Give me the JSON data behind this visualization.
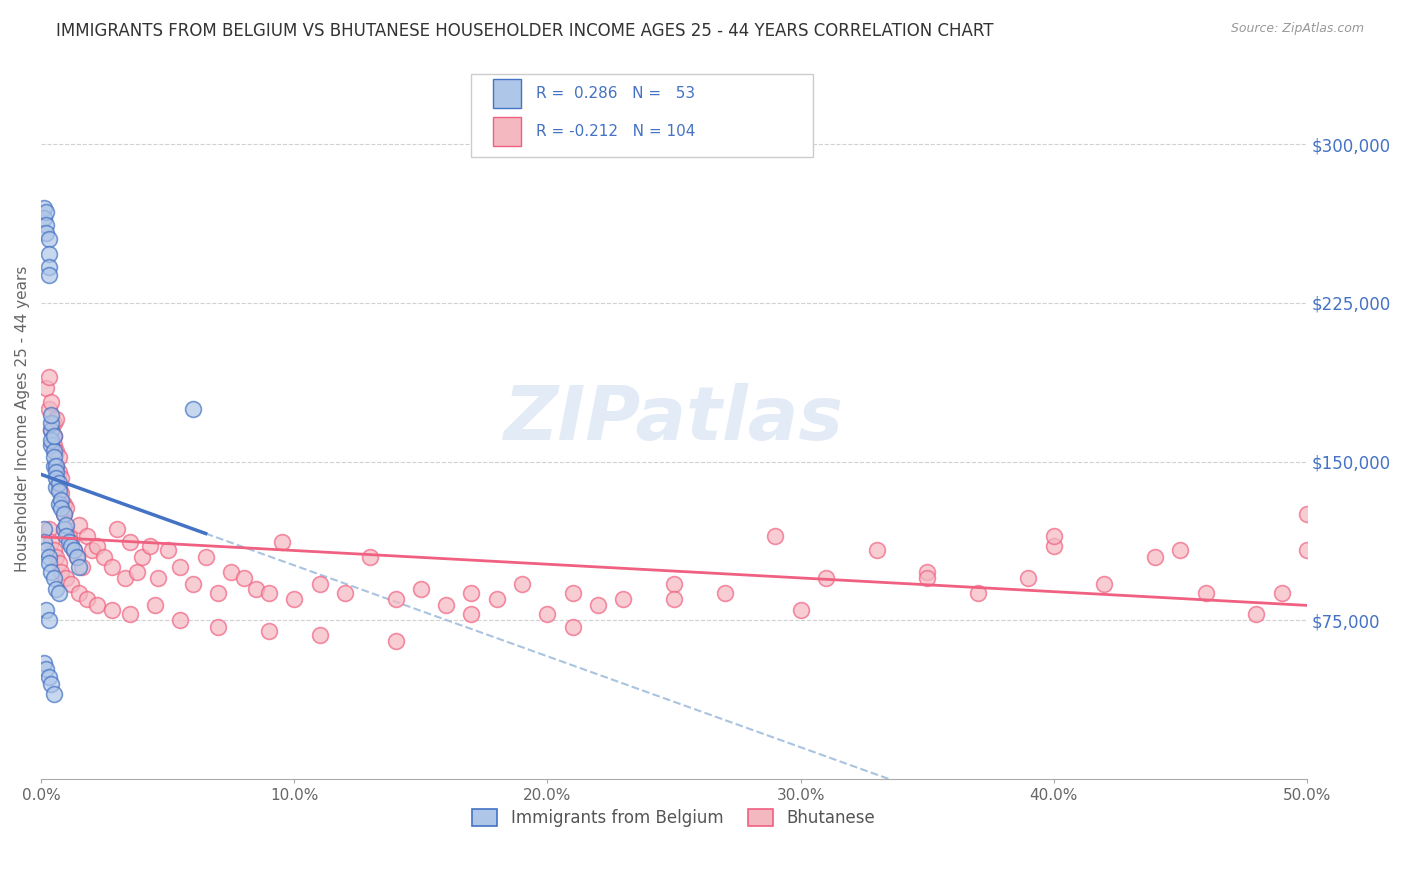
{
  "title": "IMMIGRANTS FROM BELGIUM VS BHUTANESE HOUSEHOLDER INCOME AGES 25 - 44 YEARS CORRELATION CHART",
  "source": "Source: ZipAtlas.com",
  "ylabel": "Householder Income Ages 25 - 44 years",
  "xlim": [
    0.0,
    0.5
  ],
  "ylim": [
    0,
    340000
  ],
  "xticklabels": [
    "0.0%",
    "10.0%",
    "20.0%",
    "30.0%",
    "40.0%",
    "50.0%"
  ],
  "xtick_vals": [
    0.0,
    0.1,
    0.2,
    0.3,
    0.4,
    0.5
  ],
  "yticks_right": [
    75000,
    150000,
    225000,
    300000
  ],
  "ytick_right_labels": [
    "$75,000",
    "$150,000",
    "$225,000",
    "$300,000"
  ],
  "legend_entries": [
    {
      "label": "Immigrants from Belgium",
      "color": "#aec6e8"
    },
    {
      "label": "Bhutanese",
      "color": "#f4b8c1"
    }
  ],
  "r_belgium": 0.286,
  "n_belgium": 53,
  "r_bhutanese": -0.212,
  "n_bhutanese": 104,
  "legend_r_color": "#4472c4",
  "watermark": "ZIPatlas",
  "background_color": "#ffffff",
  "grid_color": "#cccccc",
  "title_fontsize": 12,
  "belgium_scatter_color": "#aec6e8",
  "bhutanese_scatter_color": "#f4b8c1",
  "belgium_line_color": "#4472c4",
  "bhutanese_line_color": "#f06080",
  "dashed_line_color": "#aac4e0",
  "belgium_points_x": [
    0.001,
    0.001,
    0.002,
    0.002,
    0.002,
    0.003,
    0.003,
    0.003,
    0.003,
    0.004,
    0.004,
    0.004,
    0.004,
    0.004,
    0.005,
    0.005,
    0.005,
    0.005,
    0.006,
    0.006,
    0.006,
    0.006,
    0.007,
    0.007,
    0.007,
    0.008,
    0.008,
    0.009,
    0.009,
    0.01,
    0.01,
    0.011,
    0.012,
    0.013,
    0.014,
    0.015,
    0.001,
    0.001,
    0.002,
    0.003,
    0.003,
    0.004,
    0.005,
    0.006,
    0.007,
    0.001,
    0.002,
    0.003,
    0.004,
    0.005,
    0.002,
    0.003,
    0.06
  ],
  "belgium_points_y": [
    270000,
    265000,
    268000,
    262000,
    258000,
    255000,
    248000,
    242000,
    238000,
    165000,
    168000,
    158000,
    172000,
    160000,
    155000,
    162000,
    148000,
    152000,
    148000,
    145000,
    138000,
    142000,
    140000,
    136000,
    130000,
    132000,
    128000,
    125000,
    118000,
    120000,
    115000,
    112000,
    110000,
    108000,
    105000,
    100000,
    118000,
    112000,
    108000,
    105000,
    102000,
    98000,
    95000,
    90000,
    88000,
    55000,
    52000,
    48000,
    45000,
    40000,
    80000,
    75000,
    175000
  ],
  "bhutanese_points_x": [
    0.002,
    0.003,
    0.003,
    0.004,
    0.004,
    0.005,
    0.005,
    0.005,
    0.006,
    0.006,
    0.006,
    0.007,
    0.007,
    0.007,
    0.008,
    0.008,
    0.009,
    0.009,
    0.01,
    0.01,
    0.011,
    0.012,
    0.013,
    0.014,
    0.015,
    0.016,
    0.018,
    0.02,
    0.022,
    0.025,
    0.028,
    0.03,
    0.033,
    0.035,
    0.038,
    0.04,
    0.043,
    0.046,
    0.05,
    0.055,
    0.06,
    0.065,
    0.07,
    0.075,
    0.08,
    0.085,
    0.09,
    0.095,
    0.1,
    0.11,
    0.12,
    0.13,
    0.14,
    0.15,
    0.16,
    0.17,
    0.18,
    0.19,
    0.2,
    0.21,
    0.22,
    0.23,
    0.25,
    0.27,
    0.29,
    0.31,
    0.33,
    0.35,
    0.37,
    0.39,
    0.4,
    0.42,
    0.44,
    0.46,
    0.48,
    0.5,
    0.003,
    0.004,
    0.005,
    0.006,
    0.007,
    0.008,
    0.01,
    0.012,
    0.015,
    0.018,
    0.022,
    0.028,
    0.035,
    0.045,
    0.055,
    0.07,
    0.09,
    0.11,
    0.14,
    0.17,
    0.21,
    0.25,
    0.3,
    0.35,
    0.4,
    0.45,
    0.49,
    0.5
  ],
  "bhutanese_points_y": [
    185000,
    190000,
    175000,
    178000,
    165000,
    168000,
    162000,
    158000,
    170000,
    155000,
    148000,
    152000,
    145000,
    138000,
    142000,
    135000,
    130000,
    125000,
    128000,
    118000,
    115000,
    112000,
    108000,
    105000,
    120000,
    100000,
    115000,
    108000,
    110000,
    105000,
    100000,
    118000,
    95000,
    112000,
    98000,
    105000,
    110000,
    95000,
    108000,
    100000,
    92000,
    105000,
    88000,
    98000,
    95000,
    90000,
    88000,
    112000,
    85000,
    92000,
    88000,
    105000,
    85000,
    90000,
    82000,
    88000,
    85000,
    92000,
    78000,
    88000,
    82000,
    85000,
    92000,
    88000,
    115000,
    95000,
    108000,
    98000,
    88000,
    95000,
    110000,
    92000,
    105000,
    88000,
    78000,
    108000,
    118000,
    112000,
    108000,
    105000,
    102000,
    98000,
    95000,
    92000,
    88000,
    85000,
    82000,
    80000,
    78000,
    82000,
    75000,
    72000,
    70000,
    68000,
    65000,
    78000,
    72000,
    85000,
    80000,
    95000,
    115000,
    108000,
    88000,
    125000
  ]
}
